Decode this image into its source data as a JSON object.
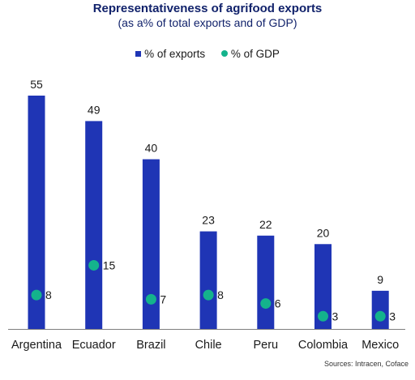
{
  "title": "Representativeness of agrifood exports",
  "subtitle": "(as a% of total exports and of GDP)",
  "source": "Sources: Intracen, Coface",
  "colors": {
    "bar": "#1f35b5",
    "dot": "#14b38c",
    "text": "#1a1a1a",
    "title": "#11226b"
  },
  "chart_data": {
    "type": "bar",
    "categories": [
      "Argentina",
      "Ecuador",
      "Brazil",
      "Chile",
      "Peru",
      "Colombia",
      "Mexico"
    ],
    "series": [
      {
        "name": "% of exports",
        "kind": "bar",
        "values": [
          55,
          49,
          40,
          23,
          22,
          20,
          9
        ]
      },
      {
        "name": "% of GDP",
        "kind": "dot",
        "values": [
          8,
          15,
          7,
          8,
          6,
          3,
          3
        ]
      }
    ],
    "ylim": [
      0,
      60
    ],
    "grid": false,
    "legend": "top-center",
    "data_labels": true
  }
}
